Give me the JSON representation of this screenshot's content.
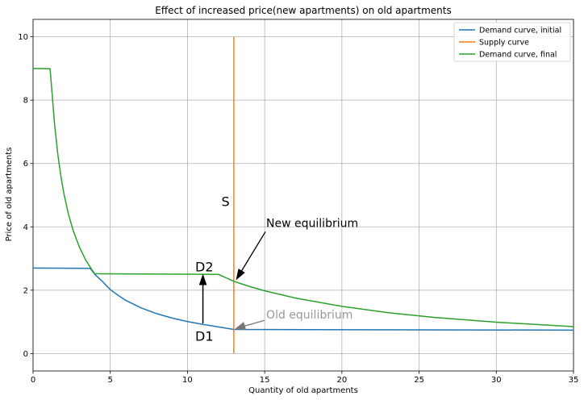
{
  "chart_data": {
    "type": "line",
    "title": "Effect of increased price(new apartments) on old apartments",
    "xlabel": "Quantity of old apartments",
    "ylabel": "Price of old apartments",
    "xlim": [
      0,
      35
    ],
    "ylim": [
      -0.55,
      10.55
    ],
    "xticks": [
      0,
      5,
      10,
      15,
      20,
      25,
      30,
      35
    ],
    "yticks": [
      0,
      2,
      4,
      6,
      8,
      10
    ],
    "grid": true,
    "legend_position": "top-right",
    "series": [
      {
        "name": "Demand curve, initial",
        "color": "#1f77b4",
        "points": [
          [
            0,
            2.7
          ],
          [
            3.7,
            2.69
          ],
          [
            4,
            2.5
          ],
          [
            4.5,
            2.27
          ],
          [
            5,
            2.02
          ],
          [
            5.5,
            1.84
          ],
          [
            6,
            1.68
          ],
          [
            7,
            1.44
          ],
          [
            8,
            1.26
          ],
          [
            9,
            1.12
          ],
          [
            10,
            1.01
          ],
          [
            11,
            0.92
          ],
          [
            12,
            0.84
          ],
          [
            13,
            0.76
          ],
          [
            35,
            0.74
          ]
        ]
      },
      {
        "name": "Supply curve",
        "color": "#ff7f0e",
        "points": [
          [
            13,
            0
          ],
          [
            13,
            10
          ]
        ]
      },
      {
        "name": "Demand curve, final",
        "color": "#2ca02c",
        "points": [
          [
            0,
            9.0
          ],
          [
            1.1,
            8.99
          ],
          [
            1.2,
            8.4
          ],
          [
            1.4,
            7.2
          ],
          [
            1.6,
            6.3
          ],
          [
            1.8,
            5.6
          ],
          [
            2.0,
            5.04
          ],
          [
            2.3,
            4.38
          ],
          [
            2.6,
            3.88
          ],
          [
            3.0,
            3.36
          ],
          [
            3.4,
            2.96
          ],
          [
            3.8,
            2.65
          ],
          [
            4.0,
            2.52
          ],
          [
            12.0,
            2.5
          ],
          [
            13,
            2.28
          ],
          [
            14,
            2.12
          ],
          [
            15,
            1.98
          ],
          [
            17,
            1.75
          ],
          [
            20,
            1.49
          ],
          [
            23,
            1.29
          ],
          [
            26,
            1.14
          ],
          [
            30,
            0.99
          ],
          [
            35,
            0.85
          ]
        ]
      }
    ],
    "annotations": {
      "s_label": {
        "text": "S",
        "x": 12.2,
        "y": 4.65
      },
      "d1_label": {
        "text": "D1",
        "x": 10.5,
        "y": 0.4
      },
      "d2_label": {
        "text": "D2",
        "x": 10.5,
        "y": 2.6
      },
      "shift_arrow": {
        "from": [
          11,
          0.95
        ],
        "to": [
          11,
          2.5
        ],
        "color": "#000000"
      },
      "new_equilibrium": {
        "text": "New equilibrium",
        "text_x": 15.1,
        "text_y": 4.0,
        "point": [
          13,
          2.28
        ],
        "color": "#000000"
      },
      "old_equilibrium": {
        "text": "Old equilibrium",
        "text_x": 15.1,
        "text_y": 1.1,
        "point": [
          13,
          0.76
        ],
        "color": "#999999"
      }
    }
  }
}
